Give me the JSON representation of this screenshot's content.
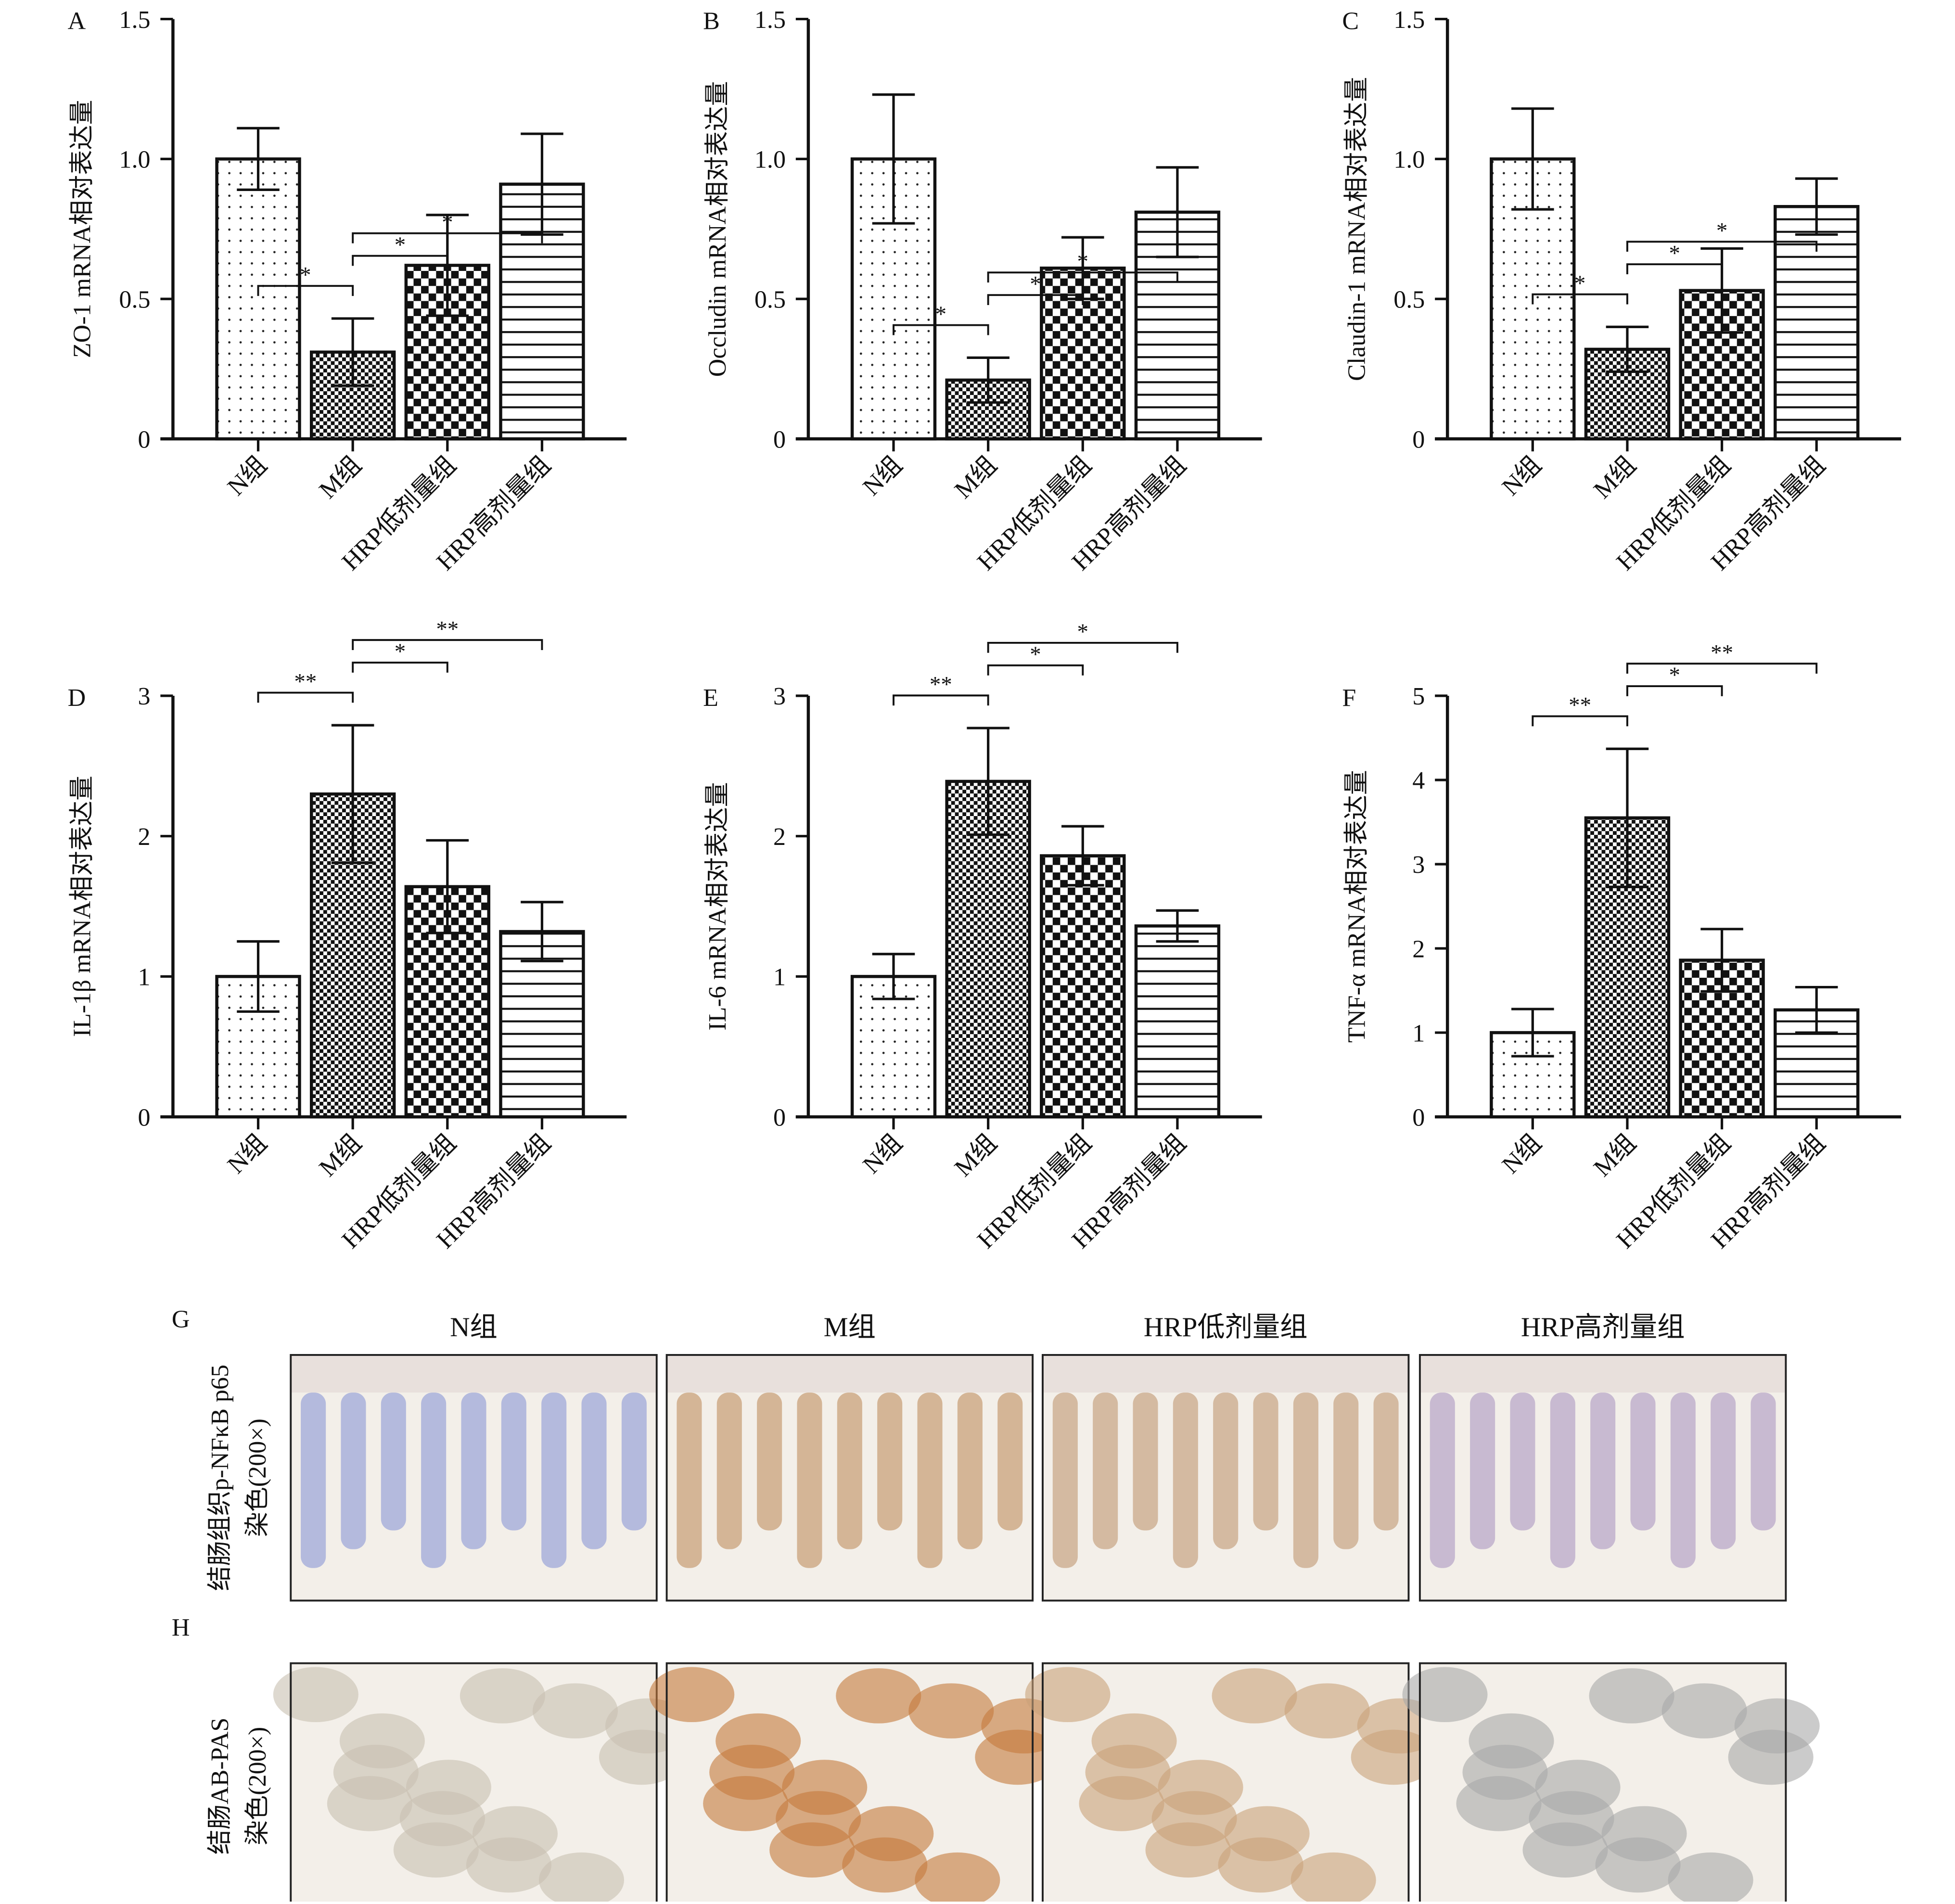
{
  "groups": [
    "N组",
    "M组",
    "HRP低剂量组",
    "HRP高剂量组"
  ],
  "chart_data": [
    {
      "type": "bar",
      "panel": "A",
      "ylabel": "ZO-1 mRNA相对表达量",
      "ylim": [
        0,
        1.5
      ],
      "ticks": [
        "0",
        "0.5",
        "1.0",
        "1.5"
      ],
      "tick_values": [
        0,
        0.5,
        1.0,
        1.5
      ],
      "values": [
        1.0,
        0.31,
        0.62,
        0.91
      ],
      "errors": [
        0.11,
        0.12,
        0.18,
        0.18
      ],
      "sig": [
        {
          "a": 0,
          "b": 1,
          "label": "*"
        },
        {
          "a": 1,
          "b": 2,
          "label": "*"
        },
        {
          "a": 1,
          "b": 3,
          "label": "*"
        }
      ]
    },
    {
      "type": "bar",
      "panel": "B",
      "ylabel": "Occludin mRNA相对表达量",
      "ylim": [
        0,
        1.5
      ],
      "ticks": [
        "0",
        "0.5",
        "1.0",
        "1.5"
      ],
      "tick_values": [
        0,
        0.5,
        1.0,
        1.5
      ],
      "values": [
        1.0,
        0.21,
        0.61,
        0.81
      ],
      "errors": [
        0.23,
        0.08,
        0.11,
        0.16
      ],
      "sig": [
        {
          "a": 0,
          "b": 1,
          "label": "*"
        },
        {
          "a": 1,
          "b": 2,
          "label": "*"
        },
        {
          "a": 1,
          "b": 3,
          "label": "*"
        }
      ]
    },
    {
      "type": "bar",
      "panel": "C",
      "ylabel": "Claudin-1 mRNA相对表达量",
      "ylim": [
        0,
        1.5
      ],
      "ticks": [
        "0",
        "0.5",
        "1.0",
        "1.5"
      ],
      "tick_values": [
        0,
        0.5,
        1.0,
        1.5
      ],
      "values": [
        1.0,
        0.32,
        0.53,
        0.83
      ],
      "errors": [
        0.18,
        0.08,
        0.15,
        0.1
      ],
      "sig": [
        {
          "a": 0,
          "b": 1,
          "label": "*"
        },
        {
          "a": 1,
          "b": 2,
          "label": "*"
        },
        {
          "a": 1,
          "b": 3,
          "label": "*"
        }
      ]
    },
    {
      "type": "bar",
      "panel": "D",
      "ylabel": "IL-1β mRNA相对表达量",
      "ylim": [
        0,
        3
      ],
      "ticks": [
        "0",
        "1",
        "2",
        "3"
      ],
      "tick_values": [
        0,
        1,
        2,
        3
      ],
      "values": [
        1.0,
        2.3,
        1.64,
        1.32
      ],
      "errors": [
        0.25,
        0.49,
        0.33,
        0.21
      ],
      "sig": [
        {
          "a": 0,
          "b": 1,
          "label": "**"
        },
        {
          "a": 1,
          "b": 2,
          "label": "*"
        },
        {
          "a": 1,
          "b": 3,
          "label": "**"
        }
      ]
    },
    {
      "type": "bar",
      "panel": "E",
      "ylabel": "IL-6 mRNA相对表达量",
      "ylim": [
        0,
        3
      ],
      "ticks": [
        "0",
        "1",
        "2",
        "3"
      ],
      "tick_values": [
        0,
        1,
        2,
        3
      ],
      "values": [
        1.0,
        2.39,
        1.86,
        1.36
      ],
      "errors": [
        0.16,
        0.38,
        0.21,
        0.11
      ],
      "sig": [
        {
          "a": 0,
          "b": 1,
          "label": "**"
        },
        {
          "a": 1,
          "b": 2,
          "label": "*"
        },
        {
          "a": 1,
          "b": 3,
          "label": "*"
        }
      ]
    },
    {
      "type": "bar",
      "panel": "F",
      "ylabel": "TNF-α mRNA相对表达量",
      "ylim": [
        0,
        5
      ],
      "ticks": [
        "0",
        "1",
        "2",
        "3",
        "4",
        "5"
      ],
      "tick_values": [
        0,
        1,
        2,
        3,
        4,
        5
      ],
      "values": [
        1.0,
        3.55,
        1.86,
        1.27
      ],
      "errors": [
        0.28,
        0.82,
        0.37,
        0.27
      ],
      "sig": [
        {
          "a": 0,
          "b": 1,
          "label": "**"
        },
        {
          "a": 1,
          "b": 2,
          "label": "*"
        },
        {
          "a": 1,
          "b": 3,
          "label": "**"
        }
      ]
    }
  ],
  "micrographs": {
    "G": {
      "panel": "G",
      "row_label_1": "结肠组织p-NFκB p65",
      "row_label_2": "染色(200×)",
      "tints": [
        "#9fa8d8",
        "#c9a27a",
        "#c9a888",
        "#b9a8c8"
      ]
    },
    "H": {
      "panel": "H",
      "row_label_1": "结肠AB-PAS",
      "row_label_2": "染色(200×)",
      "tints": [
        "#c8bfb0",
        "#c47a3c",
        "#c9a27a",
        "#a9a8a8"
      ]
    }
  },
  "colors": {
    "ink": "#111111",
    "paper": "#ffffff"
  }
}
